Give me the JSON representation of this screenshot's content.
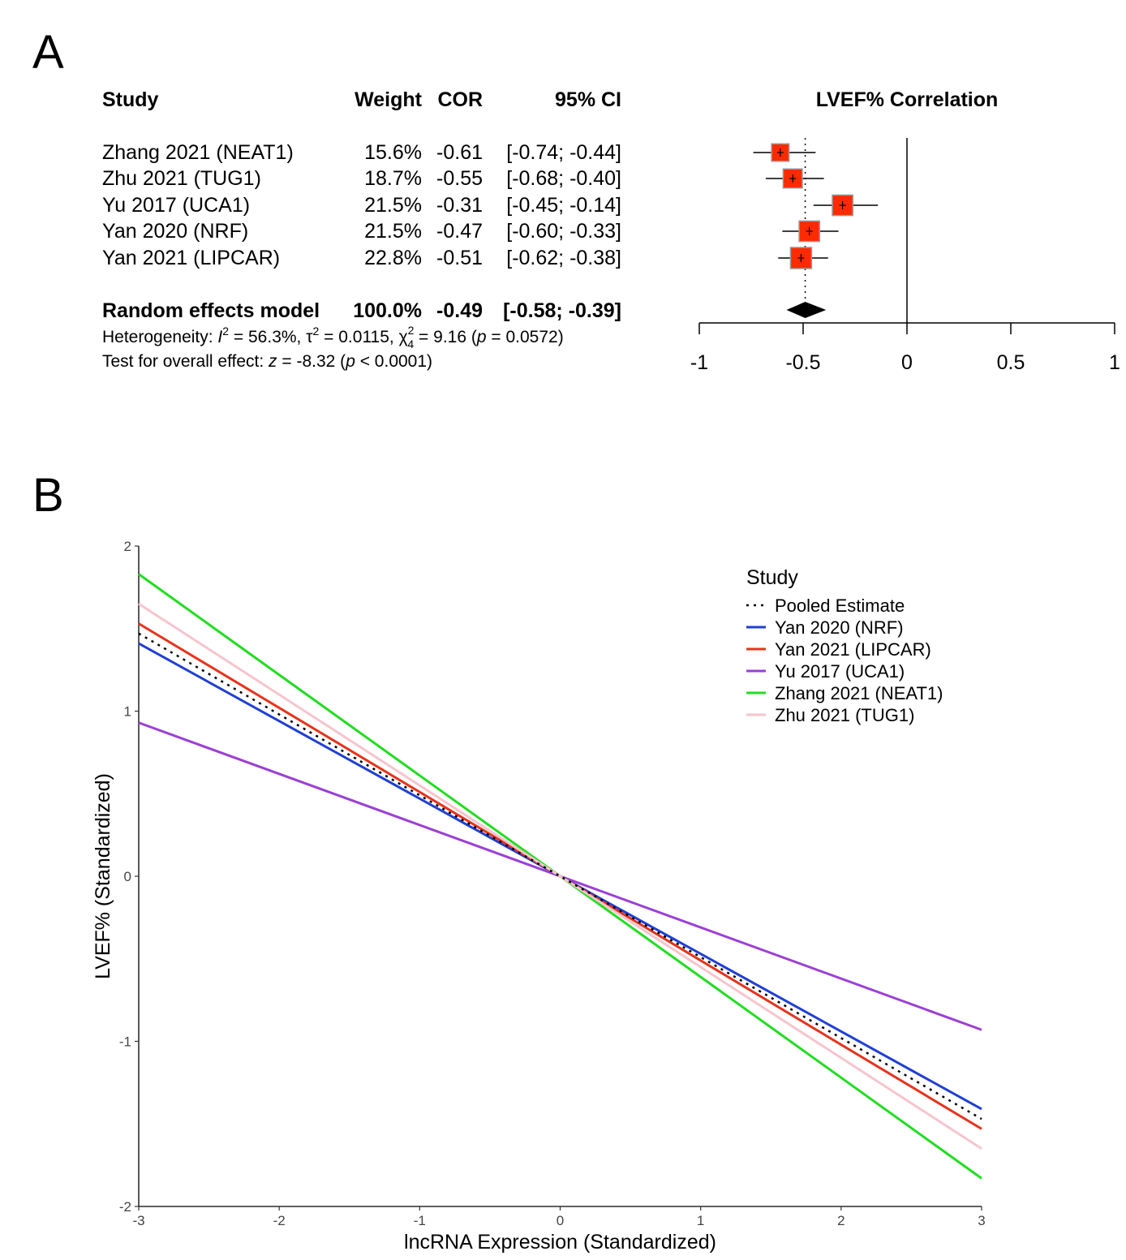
{
  "panel_a": {
    "letter": "A",
    "headers": {
      "study": "Study",
      "weight": "Weight",
      "cor": "COR",
      "ci": "95% CI",
      "plot_title": "LVEF% Correlation"
    },
    "rows": [
      {
        "study": "Zhang 2021 (NEAT1)",
        "weight": "15.6%",
        "cor": "-0.61",
        "ci": "[-0.74; -0.44]"
      },
      {
        "study": "Zhu 2021 (TUG1)",
        "weight": "18.7%",
        "cor": "-0.55",
        "ci": "[-0.68; -0.40]"
      },
      {
        "study": "Yu 2017 (UCA1)",
        "weight": "21.5%",
        "cor": "-0.31",
        "ci": "[-0.45; -0.14]"
      },
      {
        "study": "Yan 2020 (NRF)",
        "weight": "21.5%",
        "cor": "-0.47",
        "ci": "[-0.60; -0.33]"
      },
      {
        "study": "Yan 2021 (LIPCAR)",
        "weight": "22.8%",
        "cor": "-0.51",
        "ci": "[-0.62; -0.38]"
      }
    ],
    "summary": {
      "study": "Random effects model",
      "weight": "100.0%",
      "cor": "-0.49",
      "ci": "[-0.58; -0.39]"
    },
    "heterogeneity": {
      "prefix": "Heterogeneity: ",
      "i_sym": "I",
      "i_sup": "2",
      "i_val": " = 56.3%, ",
      "tau_sym": "τ",
      "tau_sup": "2",
      "tau_val": " = 0.0115, ",
      "chi_sym": "χ",
      "chi_sup": "2",
      "chi_sub": "4",
      "chi_val": " = 9.16 (",
      "p_sym": "p",
      "p_val": " = 0.0572)"
    },
    "overall": {
      "prefix": "Test for overall effect: ",
      "z_sym": "z",
      "z_val": " = -8.32 (",
      "p_sym": "p",
      "p_val": " < 0.0001)"
    }
  },
  "panel_b": {
    "letter": "B"
  },
  "chart_data": [
    {
      "type": "forest",
      "title": "LVEF% Correlation",
      "xlim": [
        -1,
        1
      ],
      "xticks": [
        "-1",
        "-0.5",
        "0",
        "0.5",
        "1"
      ],
      "xtick_values": [
        -1,
        -0.5,
        0,
        0.5,
        1
      ],
      "null_line": 0,
      "pooled_line": -0.49,
      "studies": [
        {
          "name": "Zhang 2021 (NEAT1)",
          "est": -0.61,
          "lo": -0.74,
          "hi": -0.44,
          "weight": 15.6
        },
        {
          "name": "Zhu 2021 (TUG1)",
          "est": -0.55,
          "lo": -0.68,
          "hi": -0.4,
          "weight": 18.7
        },
        {
          "name": "Yu 2017 (UCA1)",
          "est": -0.31,
          "lo": -0.45,
          "hi": -0.14,
          "weight": 21.5
        },
        {
          "name": "Yan 2020 (NRF)",
          "est": -0.47,
          "lo": -0.6,
          "hi": -0.33,
          "weight": 21.5
        },
        {
          "name": "Yan 2021 (LIPCAR)",
          "est": -0.51,
          "lo": -0.62,
          "hi": -0.38,
          "weight": 22.8
        }
      ],
      "pooled": {
        "est": -0.49,
        "lo": -0.58,
        "hi": -0.39
      },
      "colors": {
        "box": "#ff2a00",
        "box_border": "#9a9a9a",
        "diamond": "#000000"
      }
    },
    {
      "type": "line",
      "xlabel": "lncRNA Expression (Standardized)",
      "ylabel": "LVEF% (Standardized)",
      "xlim": [
        -3,
        3
      ],
      "ylim": [
        -2,
        2
      ],
      "xticks": [
        "-3",
        "-2",
        "-1",
        "0",
        "1",
        "2",
        "3"
      ],
      "xtick_values": [
        -3,
        -2,
        -1,
        0,
        1,
        2,
        3
      ],
      "yticks": [
        "-2",
        "-1",
        "0",
        "1",
        "2"
      ],
      "ytick_values": [
        -2,
        -1,
        0,
        1,
        2
      ],
      "legend_title": "Study",
      "legend_position": "top-right",
      "series": [
        {
          "name": "Pooled Estimate",
          "slope": -0.49,
          "x": [
            -3,
            3
          ],
          "y": [
            1.47,
            -1.47
          ],
          "color": "#000000",
          "style": "dotted"
        },
        {
          "name": "Yan 2020 (NRF)",
          "slope": -0.47,
          "x": [
            -3,
            3
          ],
          "y": [
            1.41,
            -1.41
          ],
          "color": "#1f3fd6",
          "style": "solid"
        },
        {
          "name": "Yan 2021 (LIPCAR)",
          "slope": -0.51,
          "x": [
            -3,
            3
          ],
          "y": [
            1.53,
            -1.53
          ],
          "color": "#e8321c",
          "style": "solid"
        },
        {
          "name": "Yu 2017 (UCA1)",
          "slope": -0.31,
          "x": [
            -3,
            3
          ],
          "y": [
            0.93,
            -0.93
          ],
          "color": "#9b3fd6",
          "style": "solid"
        },
        {
          "name": "Zhang 2021 (NEAT1)",
          "slope": -0.61,
          "x": [
            -3,
            3
          ],
          "y": [
            1.83,
            -1.83
          ],
          "color": "#22dd22",
          "style": "solid"
        },
        {
          "name": "Zhu 2021 (TUG1)",
          "slope": -0.55,
          "x": [
            -3,
            3
          ],
          "y": [
            1.65,
            -1.65
          ],
          "color": "#f7c4cd",
          "style": "solid"
        }
      ]
    }
  ]
}
